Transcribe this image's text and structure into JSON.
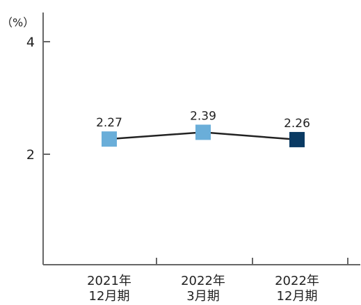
{
  "chart_data": {
    "type": "line",
    "unit_label": "（%）",
    "y_ticks": [
      "2",
      "4"
    ],
    "ylim": [
      0,
      4.8
    ],
    "categories": [
      [
        "2021年",
        "12月期"
      ],
      [
        "2022年",
        "3月期"
      ],
      [
        "2022年",
        "12月期"
      ]
    ],
    "values": [
      2.27,
      2.39,
      2.26
    ],
    "value_labels": [
      "2.27",
      "2.39",
      "2.26"
    ],
    "point_colors": [
      "#6aaed9",
      "#6aaed9",
      "#0a3a63"
    ],
    "line_color": "#222222",
    "axis_color": "#666666",
    "grid": false
  }
}
